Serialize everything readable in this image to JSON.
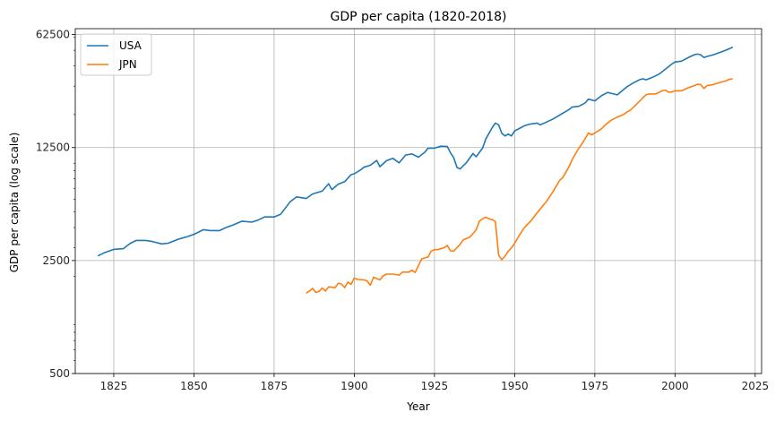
{
  "chart_data": {
    "type": "line",
    "title": "GDP per capita (1820-2018)",
    "xlabel": "Year",
    "ylabel": "GDP per capita (log scale)",
    "xlim": [
      1813,
      2027
    ],
    "ylim": [
      500,
      68000
    ],
    "yscale": "log",
    "grid": true,
    "legend_position": "top-left",
    "xticks": [
      1825,
      1850,
      1875,
      1900,
      1925,
      1950,
      1975,
      2000,
      2025
    ],
    "xtick_labels": [
      "1825",
      "1850",
      "1875",
      "1900",
      "1925",
      "1950",
      "1975",
      "2000",
      "2025"
    ],
    "yticks": [
      500,
      2500,
      12500,
      62500
    ],
    "ytick_labels": [
      "500",
      "2500",
      "12500",
      "62500"
    ],
    "series": [
      {
        "name": "USA",
        "color": "#1f77b4",
        "points": [
          [
            1820,
            2670
          ],
          [
            1822,
            2790
          ],
          [
            1825,
            2930
          ],
          [
            1828,
            2960
          ],
          [
            1830,
            3180
          ],
          [
            1832,
            3330
          ],
          [
            1835,
            3330
          ],
          [
            1837,
            3280
          ],
          [
            1840,
            3170
          ],
          [
            1842,
            3200
          ],
          [
            1845,
            3380
          ],
          [
            1848,
            3520
          ],
          [
            1850,
            3630
          ],
          [
            1853,
            3880
          ],
          [
            1855,
            3830
          ],
          [
            1858,
            3830
          ],
          [
            1860,
            4000
          ],
          [
            1862,
            4130
          ],
          [
            1865,
            4380
          ],
          [
            1868,
            4320
          ],
          [
            1870,
            4450
          ],
          [
            1872,
            4650
          ],
          [
            1875,
            4650
          ],
          [
            1877,
            4830
          ],
          [
            1880,
            5770
          ],
          [
            1882,
            6190
          ],
          [
            1885,
            6050
          ],
          [
            1887,
            6460
          ],
          [
            1890,
            6720
          ],
          [
            1892,
            7470
          ],
          [
            1893,
            6870
          ],
          [
            1895,
            7420
          ],
          [
            1897,
            7690
          ],
          [
            1899,
            8500
          ],
          [
            1900,
            8600
          ],
          [
            1902,
            9100
          ],
          [
            1903,
            9450
          ],
          [
            1905,
            9720
          ],
          [
            1907,
            10400
          ],
          [
            1908,
            9520
          ],
          [
            1910,
            10360
          ],
          [
            1912,
            10730
          ],
          [
            1914,
            10060
          ],
          [
            1916,
            11230
          ],
          [
            1918,
            11420
          ],
          [
            1920,
            10900
          ],
          [
            1922,
            11700
          ],
          [
            1923,
            12390
          ],
          [
            1925,
            12390
          ],
          [
            1927,
            12740
          ],
          [
            1929,
            12700
          ],
          [
            1930,
            11590
          ],
          [
            1931,
            10820
          ],
          [
            1932,
            9420
          ],
          [
            1933,
            9220
          ],
          [
            1935,
            10100
          ],
          [
            1937,
            11480
          ],
          [
            1938,
            10970
          ],
          [
            1940,
            12390
          ],
          [
            1941,
            14120
          ],
          [
            1943,
            16600
          ],
          [
            1944,
            17720
          ],
          [
            1945,
            17270
          ],
          [
            1946,
            15280
          ],
          [
            1947,
            14740
          ],
          [
            1948,
            15150
          ],
          [
            1949,
            14740
          ],
          [
            1950,
            15850
          ],
          [
            1952,
            16600
          ],
          [
            1953,
            17060
          ],
          [
            1955,
            17490
          ],
          [
            1957,
            17720
          ],
          [
            1958,
            17270
          ],
          [
            1960,
            18000
          ],
          [
            1962,
            18800
          ],
          [
            1965,
            20400
          ],
          [
            1967,
            21500
          ],
          [
            1968,
            22300
          ],
          [
            1970,
            22500
          ],
          [
            1972,
            23600
          ],
          [
            1973,
            24900
          ],
          [
            1975,
            24300
          ],
          [
            1977,
            26100
          ],
          [
            1979,
            27400
          ],
          [
            1980,
            27100
          ],
          [
            1982,
            26500
          ],
          [
            1983,
            27500
          ],
          [
            1985,
            29700
          ],
          [
            1987,
            31400
          ],
          [
            1989,
            32900
          ],
          [
            1990,
            33300
          ],
          [
            1991,
            32800
          ],
          [
            1993,
            34000
          ],
          [
            1995,
            35600
          ],
          [
            1997,
            38200
          ],
          [
            1999,
            41100
          ],
          [
            2000,
            42300
          ],
          [
            2002,
            42800
          ],
          [
            2004,
            44900
          ],
          [
            2006,
            46900
          ],
          [
            2007,
            47300
          ],
          [
            2008,
            46900
          ],
          [
            2009,
            45100
          ],
          [
            2010,
            45800
          ],
          [
            2012,
            46900
          ],
          [
            2014,
            48500
          ],
          [
            2016,
            50100
          ],
          [
            2018,
            52300
          ]
        ]
      },
      {
        "name": "JPN",
        "color": "#ff7f0e",
        "points": [
          [
            1885,
            1570
          ],
          [
            1886,
            1620
          ],
          [
            1887,
            1680
          ],
          [
            1888,
            1590
          ],
          [
            1889,
            1610
          ],
          [
            1890,
            1690
          ],
          [
            1891,
            1620
          ],
          [
            1892,
            1720
          ],
          [
            1894,
            1700
          ],
          [
            1895,
            1810
          ],
          [
            1896,
            1790
          ],
          [
            1897,
            1700
          ],
          [
            1898,
            1840
          ],
          [
            1899,
            1780
          ],
          [
            1900,
            1950
          ],
          [
            1901,
            1910
          ],
          [
            1903,
            1900
          ],
          [
            1904,
            1870
          ],
          [
            1905,
            1760
          ],
          [
            1906,
            1970
          ],
          [
            1908,
            1900
          ],
          [
            1909,
            2010
          ],
          [
            1910,
            2060
          ],
          [
            1912,
            2060
          ],
          [
            1914,
            2030
          ],
          [
            1915,
            2120
          ],
          [
            1917,
            2120
          ],
          [
            1918,
            2180
          ],
          [
            1919,
            2110
          ],
          [
            1920,
            2320
          ],
          [
            1921,
            2560
          ],
          [
            1923,
            2630
          ],
          [
            1924,
            2860
          ],
          [
            1925,
            2920
          ],
          [
            1926,
            2920
          ],
          [
            1928,
            3000
          ],
          [
            1929,
            3100
          ],
          [
            1930,
            2870
          ],
          [
            1931,
            2860
          ],
          [
            1933,
            3150
          ],
          [
            1934,
            3360
          ],
          [
            1936,
            3490
          ],
          [
            1937,
            3670
          ],
          [
            1938,
            3870
          ],
          [
            1939,
            4380
          ],
          [
            1940,
            4530
          ],
          [
            1941,
            4640
          ],
          [
            1942,
            4530
          ],
          [
            1943,
            4480
          ],
          [
            1944,
            4350
          ],
          [
            1945,
            2700
          ],
          [
            1946,
            2530
          ],
          [
            1947,
            2660
          ],
          [
            1948,
            2850
          ],
          [
            1949,
            2990
          ],
          [
            1950,
            3200
          ],
          [
            1952,
            3720
          ],
          [
            1953,
            3990
          ],
          [
            1955,
            4380
          ],
          [
            1957,
            4920
          ],
          [
            1958,
            5210
          ],
          [
            1960,
            5830
          ],
          [
            1962,
            6690
          ],
          [
            1964,
            7820
          ],
          [
            1965,
            8150
          ],
          [
            1967,
            9560
          ],
          [
            1968,
            10580
          ],
          [
            1970,
            12390
          ],
          [
            1971,
            13190
          ],
          [
            1972,
            14210
          ],
          [
            1973,
            15370
          ],
          [
            1974,
            15000
          ],
          [
            1975,
            15370
          ],
          [
            1977,
            16300
          ],
          [
            1978,
            17060
          ],
          [
            1980,
            18400
          ],
          [
            1982,
            19290
          ],
          [
            1984,
            20030
          ],
          [
            1985,
            20750
          ],
          [
            1986,
            21220
          ],
          [
            1988,
            23160
          ],
          [
            1990,
            25450
          ],
          [
            1991,
            26530
          ],
          [
            1992,
            26840
          ],
          [
            1994,
            26840
          ],
          [
            1996,
            28060
          ],
          [
            1997,
            28340
          ],
          [
            1998,
            27550
          ],
          [
            1999,
            27580
          ],
          [
            2000,
            28060
          ],
          [
            2002,
            28060
          ],
          [
            2004,
            29240
          ],
          [
            2006,
            30190
          ],
          [
            2007,
            30800
          ],
          [
            2008,
            30660
          ],
          [
            2009,
            29000
          ],
          [
            2010,
            30190
          ],
          [
            2012,
            30660
          ],
          [
            2014,
            31640
          ],
          [
            2016,
            32390
          ],
          [
            2017,
            33120
          ],
          [
            2018,
            33270
          ]
        ]
      }
    ]
  }
}
